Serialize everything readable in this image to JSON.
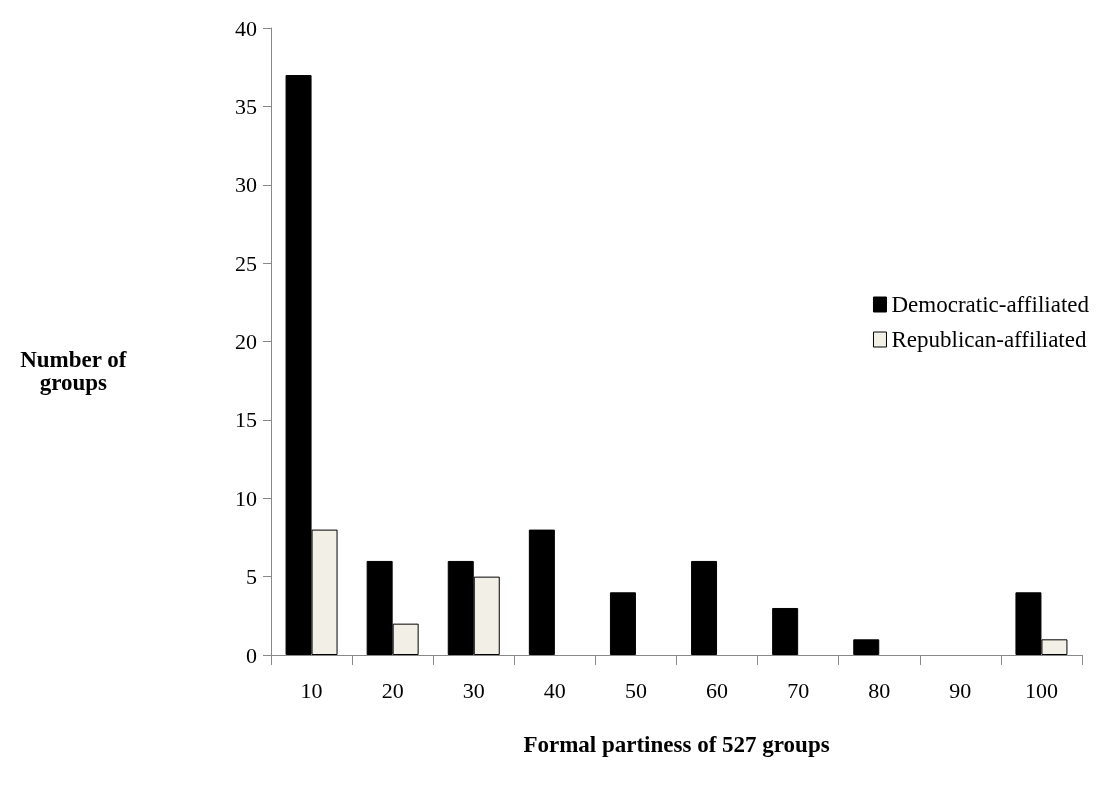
{
  "chart_data": {
    "type": "bar",
    "xlabel": "Formal partiness of 527 groups",
    "ylabel": "Number of\ngroups",
    "categories": [
      "10",
      "20",
      "30",
      "40",
      "50",
      "60",
      "70",
      "80",
      "90",
      "100"
    ],
    "series": [
      {
        "name": "Democratic-affiliated",
        "color": "#000000",
        "values": [
          37,
          6,
          6,
          8,
          4,
          6,
          3,
          1,
          0,
          4
        ]
      },
      {
        "name": "Republican-affiliated",
        "color": "#f2efe6",
        "values": [
          8,
          2,
          5,
          0,
          0,
          0,
          0,
          0,
          0,
          1
        ]
      }
    ],
    "ylim": [
      0,
      40
    ],
    "yticks": [
      0,
      5,
      10,
      15,
      20,
      25,
      30,
      35,
      40
    ],
    "grid": false,
    "legend": "right"
  }
}
